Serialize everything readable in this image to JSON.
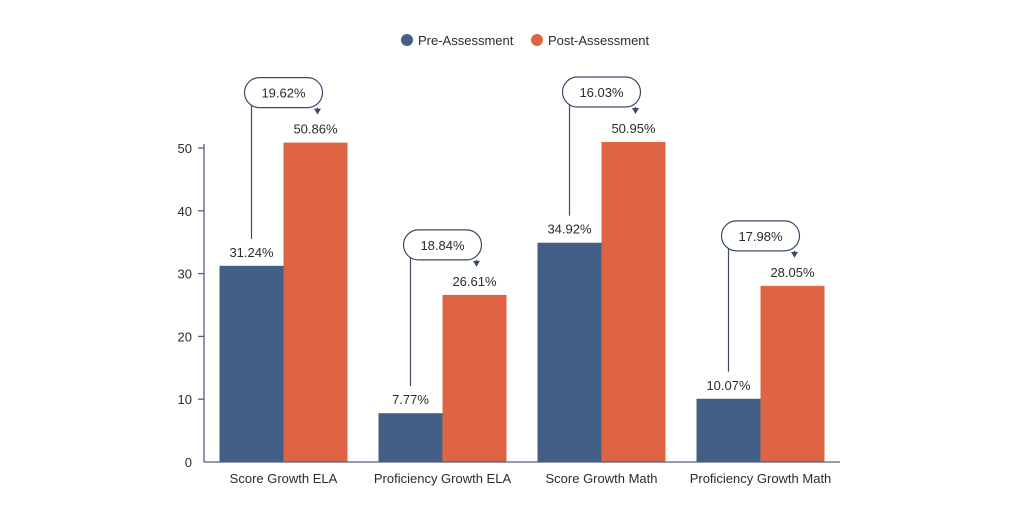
{
  "chart_data": {
    "type": "bar",
    "title": "",
    "xlabel": "",
    "ylabel": "",
    "ylim": [
      0,
      50
    ],
    "yticks": [
      0,
      10,
      20,
      30,
      40,
      50
    ],
    "grid": false,
    "legend_position": "top-center",
    "categories": [
      "Score Growth ELA",
      "Proficiency Growth ELA",
      "Score Growth Math",
      "Proficiency Growth Math"
    ],
    "series": [
      {
        "name": "Pre-Assessment",
        "color": "#445f86",
        "values": [
          31.24,
          7.77,
          34.92,
          10.07
        ],
        "labels": [
          "31.24%",
          "7.77%",
          "34.92%",
          "10.07%"
        ]
      },
      {
        "name": "Post-Assessment",
        "color": "#df6443",
        "values": [
          50.86,
          26.61,
          50.95,
          28.05
        ],
        "labels": [
          "50.86%",
          "26.61%",
          "50.95%",
          "28.05%"
        ]
      }
    ],
    "differences": [
      "19.62%",
      "18.84%",
      "16.03%",
      "17.98%"
    ],
    "axis_color": "#555f7a",
    "callout_color": "#3d4a66"
  }
}
